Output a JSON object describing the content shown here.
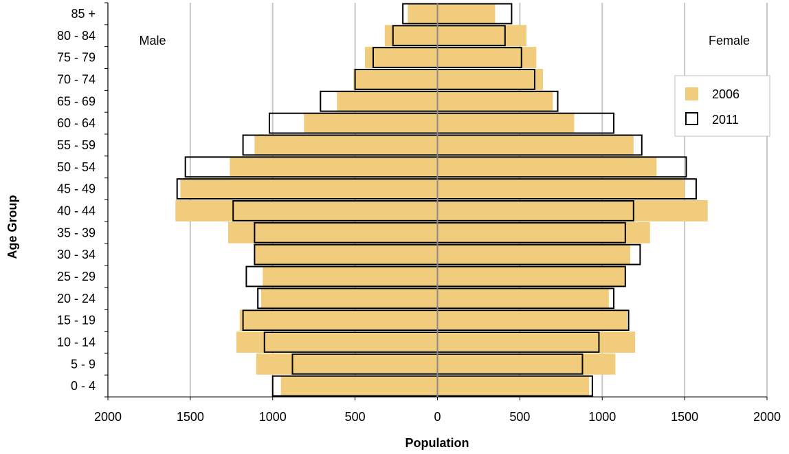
{
  "chart_data": {
    "type": "bar",
    "orientation": "horizontal",
    "subtype": "population-pyramid",
    "xlabel": "Population",
    "ylabel": "Age Group",
    "xlim": [
      -2000,
      2000
    ],
    "x_ticks": [
      -2000,
      -1500,
      -1000,
      -500,
      0,
      500,
      1000,
      1500,
      2000
    ],
    "x_tick_labels": [
      "2000",
      "1500",
      "1000",
      "500",
      "0",
      "500",
      "1000",
      "1500",
      "2000"
    ],
    "categories": [
      "0 - 4",
      "5 - 9",
      "10 - 14",
      "15 - 19",
      "20 - 24",
      "25 - 29",
      "30 - 34",
      "35 - 39",
      "40 - 44",
      "45 - 49",
      "50 - 54",
      "55 - 59",
      "60 - 64",
      "65 - 69",
      "70 - 74",
      "75 - 79",
      "80 - 84",
      "85 +"
    ],
    "side_labels": {
      "left": "Male",
      "right": "Female"
    },
    "grid": "vertical",
    "legend_position": "right",
    "series": [
      {
        "name": "2006",
        "style": "filled",
        "color": "#f0cc7c",
        "male": [
          950,
          1100,
          1220,
          1200,
          1070,
          1060,
          1110,
          1270,
          1590,
          1560,
          1260,
          1110,
          810,
          610,
          510,
          440,
          320,
          180
        ],
        "female": [
          920,
          1080,
          1200,
          1150,
          1040,
          1140,
          1170,
          1290,
          1640,
          1500,
          1330,
          1190,
          830,
          700,
          640,
          600,
          540,
          350
        ]
      },
      {
        "name": "2011",
        "style": "outline",
        "color": "#000000",
        "male": [
          1000,
          880,
          1050,
          1180,
          1090,
          1160,
          1110,
          1110,
          1240,
          1580,
          1530,
          1180,
          1020,
          710,
          500,
          390,
          270,
          210
        ],
        "female": [
          940,
          880,
          980,
          1160,
          1070,
          1140,
          1230,
          1140,
          1190,
          1570,
          1510,
          1240,
          1070,
          730,
          590,
          510,
          410,
          450
        ]
      }
    ]
  }
}
